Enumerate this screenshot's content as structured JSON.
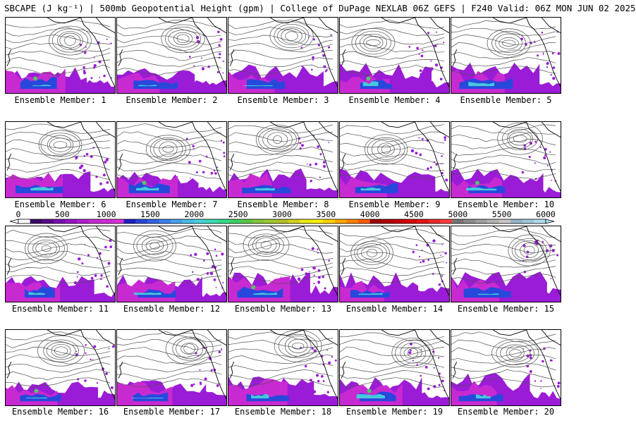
{
  "title": "SBCAPE (J kg⁻¹) | 500mb Geopotential Height (gpm) | College of DuPage NEXLAB 06Z GEFS | F240 Valid: 06Z MON JUN 02 2025",
  "colorbar": {
    "ticks": [
      "0",
      "500",
      "1000",
      "1500",
      "2000",
      "2500",
      "3000",
      "3500",
      "4000",
      "4500",
      "5000",
      "5500",
      "6000"
    ],
    "colors": [
      "#ffffff",
      "#3c0a64",
      "#5a0a8c",
      "#7a10b4",
      "#9614c8",
      "#b41ed2",
      "#c828d2",
      "#d22ad7",
      "#dc32dc",
      "#1e1ec8",
      "#2846dc",
      "#3264e6",
      "#3c82f0",
      "#46a0f0",
      "#46bee6",
      "#46d2dc",
      "#3cdcb4",
      "#32dc8c",
      "#3cd264",
      "#5ac846",
      "#82c83c",
      "#a0c832",
      "#b4be28",
      "#d2d21e",
      "#ebeb14",
      "#fff00a",
      "#ffd200",
      "#ffaa00",
      "#ff8200",
      "#ff5a00",
      "#a00000",
      "#b40000",
      "#c80000",
      "#dc0000",
      "#e61414",
      "#f02828",
      "#ff3c3c",
      "#787878",
      "#8c8c8c",
      "#a0a0a0",
      "#b4b4b4",
      "#c8c8c8",
      "#96b4c8",
      "#a0c8dc",
      "#b4dcf0"
    ]
  },
  "panels": [
    {
      "caption": "Ensemble Member: 1"
    },
    {
      "caption": "Ensemble Member: 2"
    },
    {
      "caption": "Ensemble Member: 3"
    },
    {
      "caption": "Ensemble Member: 4"
    },
    {
      "caption": "Ensemble Member: 5"
    },
    {
      "caption": "Ensemble Member: 6"
    },
    {
      "caption": "Ensemble Member: 7"
    },
    {
      "caption": "Ensemble Member: 8"
    },
    {
      "caption": "Ensemble Member: 9"
    },
    {
      "caption": "Ensemble Member: 10"
    },
    {
      "caption": "Ensemble Member: 11"
    },
    {
      "caption": "Ensemble Member: 12"
    },
    {
      "caption": "Ensemble Member: 13"
    },
    {
      "caption": "Ensemble Member: 14"
    },
    {
      "caption": "Ensemble Member: 15"
    },
    {
      "caption": "Ensemble Member: 16"
    },
    {
      "caption": "Ensemble Member: 17"
    },
    {
      "caption": "Ensemble Member: 18"
    },
    {
      "caption": "Ensemble Member: 19"
    },
    {
      "caption": "Ensemble Member: 20"
    }
  ],
  "colors": {
    "cape_purple": "#9b1cd6",
    "cape_magenta": "#c82ad2",
    "cape_blue": "#2848dc",
    "cape_cyan": "#46c8dc",
    "cape_green": "#50c864",
    "contour": "#505050",
    "coastline": "#000000"
  }
}
